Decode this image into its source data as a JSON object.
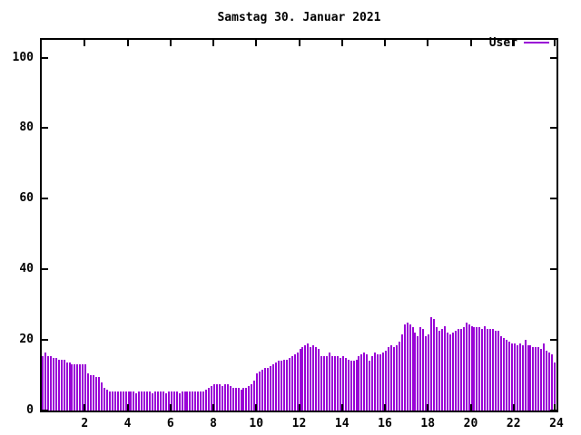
{
  "title": "Samstag 30. Januar 2021",
  "legend": {
    "label": "User",
    "position": "top-right-inside"
  },
  "colors": {
    "series": "#9900D6",
    "axis": "#000000",
    "background": "#FFFFFF",
    "text": "#000000"
  },
  "chart_data": {
    "type": "bar",
    "title": "Samstag 30. Januar 2021",
    "series_name": "User",
    "xlabel": "",
    "ylabel": "",
    "x_unit": "hour of day",
    "x_interval_minutes": 7.5,
    "xlim": [
      0,
      24
    ],
    "ylim": [
      0,
      105
    ],
    "x_ticks": [
      2,
      4,
      6,
      8,
      10,
      12,
      14,
      16,
      18,
      20,
      22,
      24
    ],
    "y_ticks": [
      0,
      20,
      40,
      60,
      80,
      100
    ],
    "grid": "off",
    "legend_position": "top-right",
    "values": [
      15.5,
      16.5,
      15.5,
      15.5,
      15,
      15,
      14.5,
      14.5,
      14.5,
      13.5,
      13.5,
      13,
      13,
      13,
      13,
      13,
      13,
      10.5,
      10,
      10,
      9.5,
      9.5,
      8,
      6.5,
      6,
      5.5,
      5.5,
      5.5,
      5.5,
      5.5,
      5.5,
      5.5,
      5.5,
      5.5,
      5.5,
      5,
      5.5,
      5.5,
      5.5,
      5.5,
      5.5,
      5,
      5.5,
      5.5,
      5.5,
      5.5,
      5,
      5.5,
      5.5,
      5.5,
      5.5,
      5,
      5.5,
      5.5,
      5.5,
      5.5,
      5.5,
      5.5,
      5.5,
      5.5,
      5.5,
      6,
      6.5,
      7,
      7.5,
      7.5,
      7.5,
      7,
      7.5,
      7.5,
      7,
      6.5,
      6.5,
      6.5,
      6,
      6.5,
      6.5,
      7,
      7.5,
      8.5,
      10.5,
      11,
      11.5,
      12,
      12,
      12.5,
      13,
      13.5,
      14,
      14,
      14.5,
      14.5,
      15,
      15.5,
      16,
      16.5,
      17.5,
      18,
      18.5,
      19,
      18,
      18.5,
      18,
      17.5,
      15.5,
      15.5,
      15.5,
      16.5,
      15.5,
      15.5,
      15.5,
      15,
      15.5,
      15,
      14.5,
      14,
      14,
      14.5,
      15.5,
      16,
      16.5,
      16,
      14,
      15.5,
      16.5,
      16,
      16,
      16.5,
      17,
      18,
      18.5,
      18,
      18.5,
      19.5,
      21.5,
      24.5,
      25,
      24.5,
      23.5,
      22,
      21,
      23.5,
      23,
      21,
      21.5,
      26.5,
      26,
      23.5,
      22.5,
      23,
      24,
      22,
      21.5,
      22,
      22.5,
      23,
      23,
      23.5,
      25,
      24.5,
      24,
      23.5,
      23.5,
      23.5,
      23,
      24,
      23,
      23,
      23,
      22.5,
      22.5,
      21,
      20.5,
      20,
      19.5,
      19,
      19,
      18.5,
      19,
      18.5,
      20,
      18.5,
      18.5,
      18,
      18,
      18,
      17.5,
      19,
      17,
      16.5,
      16,
      13.5
    ]
  }
}
